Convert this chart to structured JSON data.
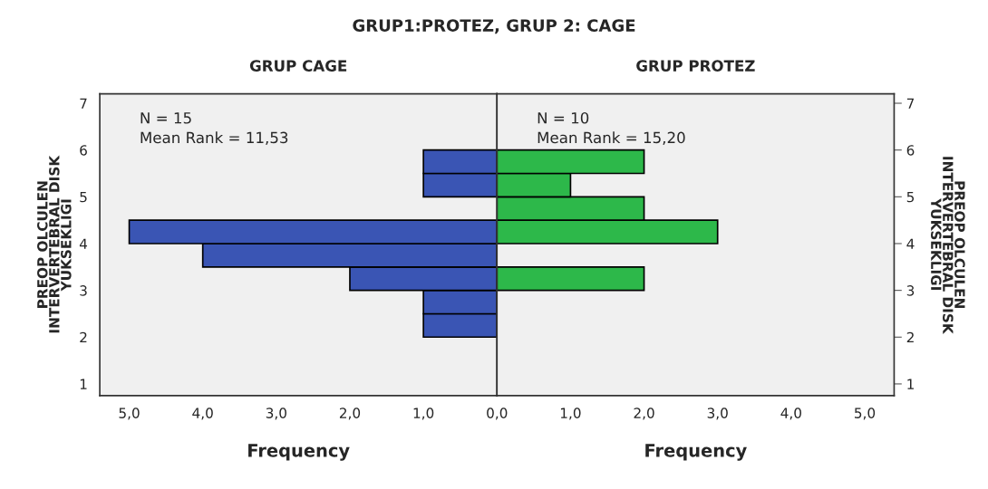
{
  "chart_data": [
    {
      "type": "histogram",
      "orientation": "horizontal",
      "title": "GRUP CAGE",
      "xlabel": "Frequency",
      "ylabel": "PREOP OLCULEN\nINTERVERTEBRAL DISK\nYUKSEKLIGI",
      "bins": [
        2.0,
        2.5,
        3.0,
        3.5,
        4.0,
        4.5,
        5.0,
        5.5,
        6.0
      ],
      "values": [
        1,
        1,
        2,
        4,
        5,
        null,
        1,
        1
      ],
      "color": "#3a55b4",
      "xlim": [
        5.4,
        0
      ],
      "xticks": [
        {
          "value": 5,
          "label": "5,0"
        },
        {
          "value": 4,
          "label": "4,0"
        },
        {
          "value": 3,
          "label": "3,0"
        },
        {
          "value": 2,
          "label": "2,0"
        },
        {
          "value": 1,
          "label": "1,0"
        },
        {
          "value": 0,
          "label": null
        }
      ],
      "ylim": [
        0.75,
        7.2
      ],
      "yticks": [
        1,
        2,
        3,
        4,
        5,
        6,
        7
      ],
      "grid": false,
      "annotations": [
        "GRUP1:PROTEZ, GRUP 2: CAGE",
        "N = 15",
        "Mean Rank = 11,53"
      ]
    },
    {
      "type": "histogram",
      "orientation": "horizontal",
      "title": "GRUP PROTEZ",
      "xlabel": "Frequency",
      "ylabel": "PREOP OLCULEN\nINTERVERTEBRAL DISK\nYUKSEKLIGI",
      "bins": [
        3.0,
        3.5,
        4.0,
        4.5,
        5.0,
        5.5,
        6.0
      ],
      "values": [
        2,
        null,
        3,
        2,
        1,
        2
      ],
      "color": "#2db84a",
      "xlim": [
        0,
        5.4
      ],
      "xticks": [
        {
          "value": 0,
          "label": "0,0"
        },
        {
          "value": 1,
          "label": "1,0"
        },
        {
          "value": 2,
          "label": "2,0"
        },
        {
          "value": 3,
          "label": "3,0"
        },
        {
          "value": 4,
          "label": "4,0"
        },
        {
          "value": 5,
          "label": "5,0"
        }
      ],
      "ylim": [
        0.75,
        7.2
      ],
      "yticks": [
        1,
        2,
        3,
        4,
        5,
        6,
        7
      ],
      "grid": false,
      "annotations": [
        "N = 10",
        "Mean Rank = 15,20"
      ]
    }
  ]
}
